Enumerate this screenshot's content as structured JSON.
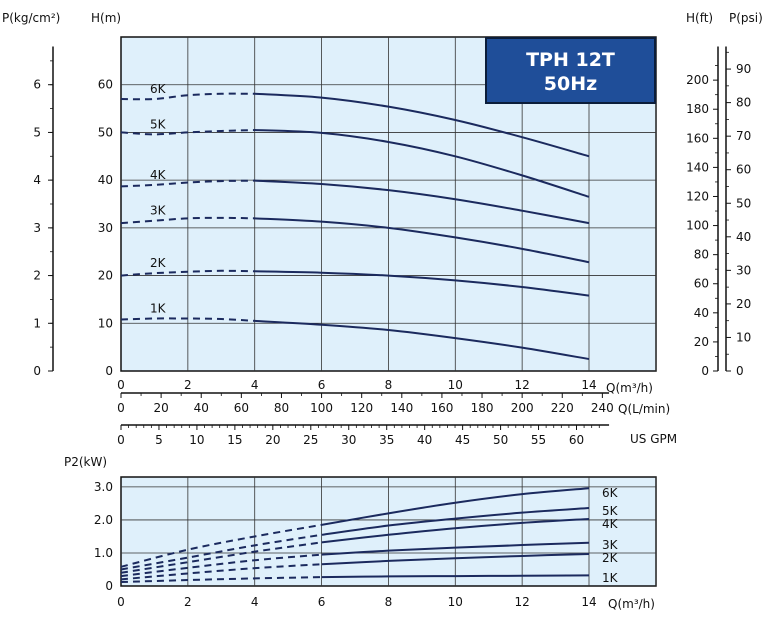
{
  "chart_data": [
    {
      "type": "line",
      "title": "TPH 12T",
      "subtitle": "50Hz",
      "xlabel": "Q(m³/h)",
      "ylabel": "H(m)",
      "xlim": [
        0,
        14
      ],
      "ylim": [
        0,
        70
      ],
      "x_ticks": [
        "0",
        "2",
        "4",
        "6",
        "8",
        "10",
        "12",
        "14"
      ],
      "y_ticks": [
        "0",
        "10",
        "20",
        "30",
        "40",
        "50",
        "60"
      ],
      "grid": true,
      "dashed_until_x": 4,
      "secondary_axes": {
        "left_outer": {
          "label": "P(kg/cm²)",
          "ticks": [
            "0",
            "1",
            "2",
            "3",
            "4",
            "5",
            "6"
          ]
        },
        "right_inner": {
          "label": "H(ft)",
          "ticks": [
            "0",
            "20",
            "40",
            "60",
            "80",
            "100",
            "120",
            "140",
            "160",
            "180",
            "200"
          ]
        },
        "right_outer": {
          "label": "P(psi)",
          "ticks": [
            "0",
            "10",
            "20",
            "30",
            "40",
            "50",
            "60",
            "70",
            "80",
            "90"
          ]
        },
        "bottom_lmin": {
          "label": "Q(L/min)",
          "ticks": [
            "0",
            "20",
            "40",
            "60",
            "80",
            "100",
            "120",
            "140",
            "160",
            "180",
            "200",
            "220",
            "240"
          ]
        },
        "bottom_gpm": {
          "label": "US GPM",
          "ticks": [
            "0",
            "5",
            "10",
            "15",
            "20",
            "25",
            "30",
            "35",
            "40",
            "45",
            "50",
            "55",
            "60"
          ]
        }
      },
      "x": [
        0,
        1,
        2,
        3,
        4,
        6,
        8,
        10,
        12,
        14
      ],
      "series": [
        {
          "name": "1K",
          "values": [
            10.8,
            11.0,
            11.0,
            10.9,
            10.5,
            9.7,
            8.6,
            6.9,
            4.9,
            2.5
          ]
        },
        {
          "name": "2K",
          "values": [
            20.0,
            20.5,
            20.8,
            21.0,
            20.9,
            20.6,
            20.0,
            19.0,
            17.6,
            15.8
          ]
        },
        {
          "name": "3K",
          "values": [
            31.0,
            31.5,
            32.0,
            32.1,
            32.0,
            31.3,
            30.0,
            28.0,
            25.6,
            22.8
          ]
        },
        {
          "name": "4K",
          "values": [
            38.7,
            39.0,
            39.5,
            39.8,
            39.9,
            39.2,
            37.9,
            36.0,
            33.6,
            31.0
          ]
        },
        {
          "name": "5K",
          "values": [
            50.0,
            49.6,
            50.0,
            50.3,
            50.5,
            49.9,
            48.0,
            45.0,
            41.0,
            36.5
          ]
        },
        {
          "name": "6K",
          "values": [
            57.0,
            57.0,
            57.8,
            58.1,
            58.1,
            57.3,
            55.4,
            52.6,
            49.0,
            45.0
          ]
        }
      ]
    },
    {
      "type": "line",
      "xlabel": "Q(m³/h)",
      "ylabel": "P2(kW)",
      "xlim": [
        0,
        14
      ],
      "ylim": [
        0,
        3.3
      ],
      "x_ticks": [
        "0",
        "2",
        "4",
        "6",
        "8",
        "10",
        "12",
        "14"
      ],
      "y_ticks": [
        "0",
        "1.0",
        "2.0",
        "3.0"
      ],
      "grid": true,
      "dashed_until_x": 6,
      "x": [
        0,
        2,
        4,
        6,
        8,
        10,
        12,
        14
      ],
      "series": [
        {
          "name": "1K",
          "values": [
            0.12,
            0.18,
            0.23,
            0.27,
            0.29,
            0.3,
            0.31,
            0.32
          ]
        },
        {
          "name": "2K",
          "values": [
            0.2,
            0.38,
            0.54,
            0.66,
            0.76,
            0.84,
            0.91,
            0.97
          ]
        },
        {
          "name": "3K",
          "values": [
            0.3,
            0.55,
            0.78,
            0.95,
            1.07,
            1.16,
            1.24,
            1.31
          ]
        },
        {
          "name": "4K",
          "values": [
            0.4,
            0.72,
            1.04,
            1.32,
            1.55,
            1.75,
            1.91,
            2.03
          ]
        },
        {
          "name": "5K",
          "values": [
            0.5,
            0.86,
            1.23,
            1.55,
            1.83,
            2.04,
            2.22,
            2.36
          ]
        },
        {
          "name": "6K",
          "values": [
            0.58,
            1.1,
            1.5,
            1.85,
            2.2,
            2.52,
            2.78,
            2.96
          ]
        }
      ]
    }
  ]
}
